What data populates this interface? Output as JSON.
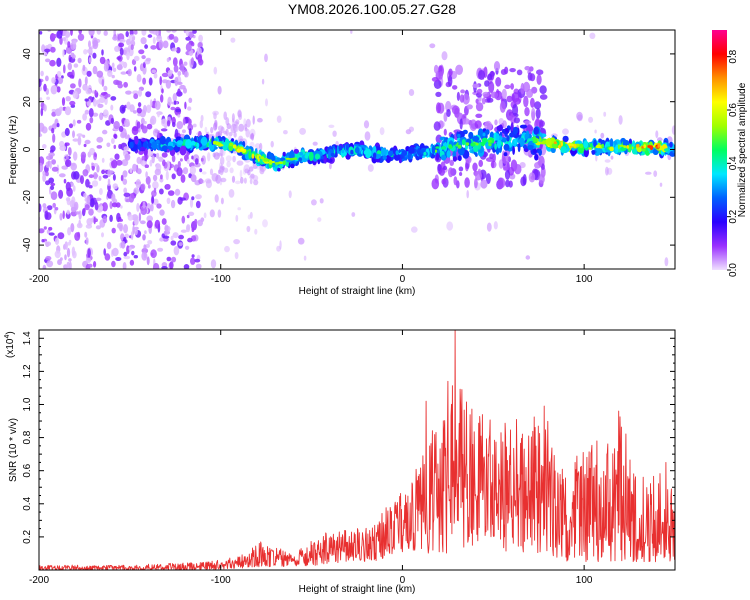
{
  "title": "YM08.2026.100.05.27.G28",
  "chart_data": [
    {
      "type": "heatmap",
      "xlabel": "Height of straight line (km)",
      "ylabel": "Frequency (Hz)",
      "xlim": [
        -200,
        150
      ],
      "ylim": [
        -50,
        50
      ],
      "xticks": [
        -200,
        -100,
        0,
        100
      ],
      "xtick_labels": [
        "-200",
        "-100",
        "0",
        "100"
      ],
      "yticks": [
        -40,
        -20,
        0,
        20,
        40
      ],
      "ytick_labels": [
        "-40",
        "-20",
        "0",
        "20",
        "40"
      ],
      "colorbar": {
        "label": "Normalized spectral amplitude",
        "range": [
          0,
          0.9
        ],
        "ticks": [
          0.0,
          0.2,
          0.4,
          0.6,
          0.8
        ],
        "tick_labels": [
          "0.0",
          "0.2",
          "0.4",
          "0.6",
          "0.8"
        ],
        "colors": [
          "#f0e0ff",
          "#9a30ff",
          "#2a00ff",
          "#0060ff",
          "#00e8ff",
          "#00ff60",
          "#a0ff00",
          "#ffff00",
          "#ff9000",
          "#ff0000",
          "#ff0090"
        ]
      },
      "band_profile": [
        {
          "x": -145,
          "f": 2,
          "amp": 0.3
        },
        {
          "x": -130,
          "f": 2,
          "amp": 0.45
        },
        {
          "x": -110,
          "f": 3,
          "amp": 0.5
        },
        {
          "x": -95,
          "f": 2,
          "amp": 0.6
        },
        {
          "x": -80,
          "f": -3,
          "amp": 0.65
        },
        {
          "x": -70,
          "f": -6,
          "amp": 0.55
        },
        {
          "x": -55,
          "f": -3,
          "amp": 0.5
        },
        {
          "x": -40,
          "f": -2,
          "amp": 0.45
        },
        {
          "x": -25,
          "f": 0,
          "amp": 0.45
        },
        {
          "x": -10,
          "f": -2,
          "amp": 0.5
        },
        {
          "x": 0,
          "f": -2,
          "amp": 0.45
        },
        {
          "x": 15,
          "f": -1,
          "amp": 0.5
        },
        {
          "x": 30,
          "f": 2,
          "amp": 0.5
        },
        {
          "x": 50,
          "f": 3,
          "amp": 0.5
        },
        {
          "x": 70,
          "f": 4,
          "amp": 0.45
        },
        {
          "x": 85,
          "f": 2,
          "amp": 0.8
        },
        {
          "x": 100,
          "f": 1,
          "amp": 0.55
        },
        {
          "x": 120,
          "f": 1,
          "amp": 0.6
        },
        {
          "x": 140,
          "f": 1,
          "amp": 0.8
        },
        {
          "x": 150,
          "f": 0,
          "amp": 0.4
        }
      ]
    },
    {
      "type": "line",
      "xlabel": "Height of straight line (km)",
      "ylabel": "SNR (10 * v/v)",
      "yunit_label": "(x10",
      "yunit_exponent": "4",
      "xlim": [
        -200,
        150
      ],
      "ylim": [
        0,
        1.45
      ],
      "xticks": [
        -200,
        -100,
        0,
        100
      ],
      "xtick_labels": [
        "-200",
        "-100",
        "0",
        "100"
      ],
      "yticks": [
        0.2,
        0.4,
        0.6,
        0.8,
        1.0,
        1.2,
        1.4
      ],
      "ytick_labels": [
        "0.2",
        "0.4",
        "0.6",
        "0.8",
        "1.0",
        "1.2",
        "1.4"
      ],
      "series": [
        {
          "color": "#e83030",
          "envelope": [
            {
              "x": -200,
              "low": 0.0,
              "high": 0.03
            },
            {
              "x": -150,
              "low": 0.0,
              "high": 0.03
            },
            {
              "x": -110,
              "low": 0.0,
              "high": 0.05
            },
            {
              "x": -90,
              "low": 0.01,
              "high": 0.08
            },
            {
              "x": -78,
              "low": 0.02,
              "high": 0.17
            },
            {
              "x": -60,
              "low": 0.02,
              "high": 0.1
            },
            {
              "x": -45,
              "low": 0.03,
              "high": 0.22
            },
            {
              "x": -30,
              "low": 0.05,
              "high": 0.25
            },
            {
              "x": -15,
              "low": 0.05,
              "high": 0.28
            },
            {
              "x": -5,
              "low": 0.1,
              "high": 0.45
            },
            {
              "x": 5,
              "low": 0.12,
              "high": 0.55
            },
            {
              "x": 15,
              "low": 0.1,
              "high": 0.85
            },
            {
              "x": 28,
              "low": 0.1,
              "high": 1.2
            },
            {
              "x": 40,
              "low": 0.15,
              "high": 0.95
            },
            {
              "x": 55,
              "low": 0.1,
              "high": 1.0
            },
            {
              "x": 65,
              "low": 0.1,
              "high": 0.9
            },
            {
              "x": 78,
              "low": 0.1,
              "high": 1.0
            },
            {
              "x": 90,
              "low": 0.05,
              "high": 0.55
            },
            {
              "x": 100,
              "low": 0.05,
              "high": 0.8
            },
            {
              "x": 110,
              "low": 0.05,
              "high": 0.7
            },
            {
              "x": 120,
              "low": 0.05,
              "high": 0.95
            },
            {
              "x": 130,
              "low": 0.05,
              "high": 0.55
            },
            {
              "x": 140,
              "low": 0.05,
              "high": 0.65
            },
            {
              "x": 150,
              "low": 0.05,
              "high": 0.45
            }
          ],
          "peaks": [
            {
              "x": -78,
              "y": 0.17
            },
            {
              "x": 13,
              "y": 1.02
            },
            {
              "x": 25,
              "y": 1.14
            },
            {
              "x": 29,
              "y": 1.45
            },
            {
              "x": 32,
              "y": 1.0
            },
            {
              "x": 78,
              "y": 0.99
            },
            {
              "x": 107,
              "y": 0.78
            },
            {
              "x": 119,
              "y": 0.96
            },
            {
              "x": 145,
              "y": 0.65
            }
          ]
        }
      ]
    }
  ]
}
